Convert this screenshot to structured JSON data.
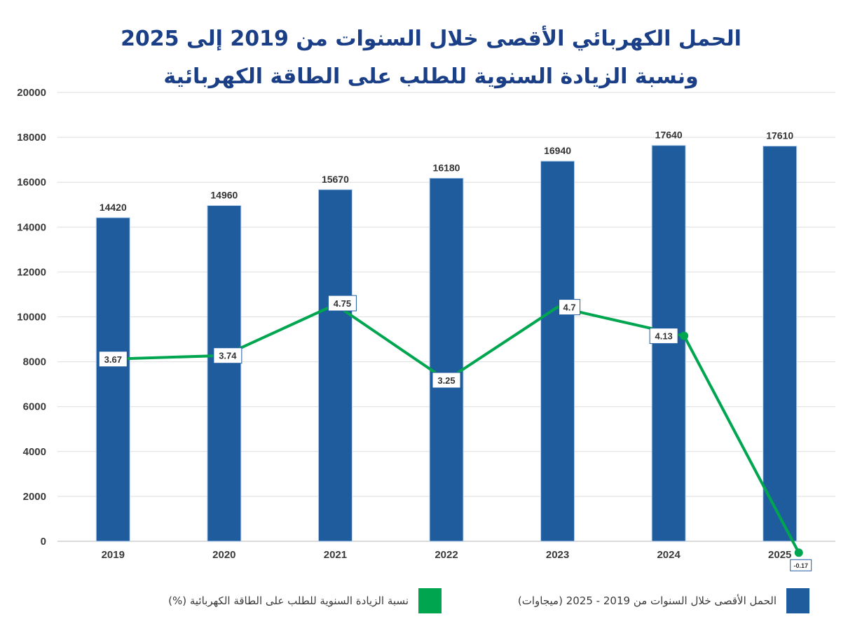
{
  "chart_data": {
    "type": "bar+line",
    "title": "الحمل الكهربائي الأقصى خلال السنوات من  2019 إلى 2025",
    "subtitle": "ونسبة الزيادة السنوية للطلب على الطاقة الكهربائية",
    "categories": [
      "2019",
      "2020",
      "2021",
      "2022",
      "2023",
      "2024",
      "2025"
    ],
    "series": [
      {
        "name": "الحمل الأقصى  خلال السنوات من 2019 - 2025 (ميجاوات)",
        "type": "bar",
        "color": "#1f5c9e",
        "values": [
          14420,
          14960,
          15670,
          16180,
          16940,
          17640,
          17610
        ],
        "labels": [
          "14420",
          "14960",
          "15670",
          "16180",
          "16940",
          "17640",
          "17610"
        ]
      },
      {
        "name": "نسبة الزيادة السنوية للطلب على الطاقة الكهربائية (%)",
        "type": "line",
        "color": "#00a550",
        "values": [
          3.67,
          3.74,
          4.75,
          3.25,
          4.7,
          4.13,
          -0.17
        ],
        "labels": [
          "3.67",
          "3.74",
          "4.75",
          "3.25",
          "4.7",
          "4.13",
          "-0.17"
        ]
      }
    ],
    "ylim": [
      0,
      20000
    ],
    "yticks": [
      "0",
      "2000",
      "4000",
      "6000",
      "8000",
      "10000",
      "12000",
      "14000",
      "16000",
      "18000",
      "20000"
    ],
    "grid": true,
    "legend_position": "bottom",
    "xlabel": "",
    "ylabel": ""
  }
}
